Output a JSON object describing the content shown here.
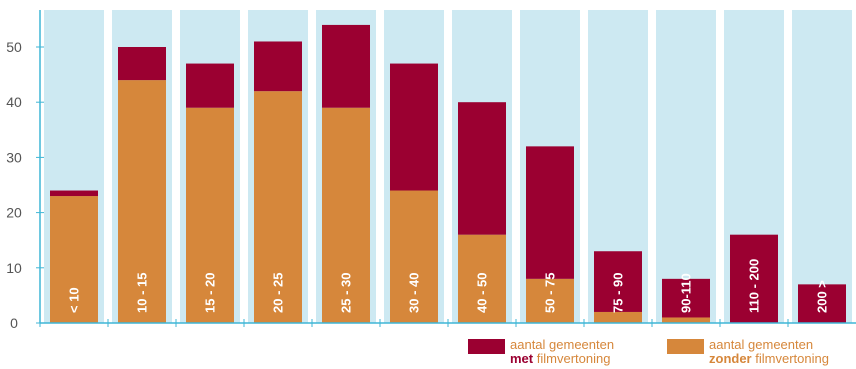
{
  "chart_data": {
    "type": "bar",
    "stacked": true,
    "categories": [
      "< 10",
      "10 - 15",
      "15 - 20",
      "20 - 25",
      "25 - 30",
      "30 - 40",
      "40 - 50",
      "50 - 75",
      "75 - 90",
      "90-110",
      "110 - 200",
      "200 >"
    ],
    "series": [
      {
        "name_bold": "zonder",
        "name_prefix": "aantal gemeenten",
        "name_suffix": "filmvertoning",
        "color": "#d6873b",
        "values": [
          23,
          44,
          39,
          42,
          39,
          24,
          16,
          8,
          2,
          1,
          0,
          0
        ]
      },
      {
        "name_bold": "met",
        "name_prefix": "aantal gemeenten",
        "name_suffix": "filmvertoning",
        "color": "#9b0031",
        "values": [
          1,
          6,
          8,
          9,
          15,
          23,
          24,
          24,
          11,
          7,
          16,
          7
        ]
      }
    ],
    "ylim": [
      0,
      55
    ],
    "yticks": [
      0,
      10,
      20,
      30,
      40,
      50
    ],
    "grid": false,
    "column_background": "#cde9f2",
    "axis_color": "#3fb6d6",
    "legend_position": "bottom-right"
  }
}
